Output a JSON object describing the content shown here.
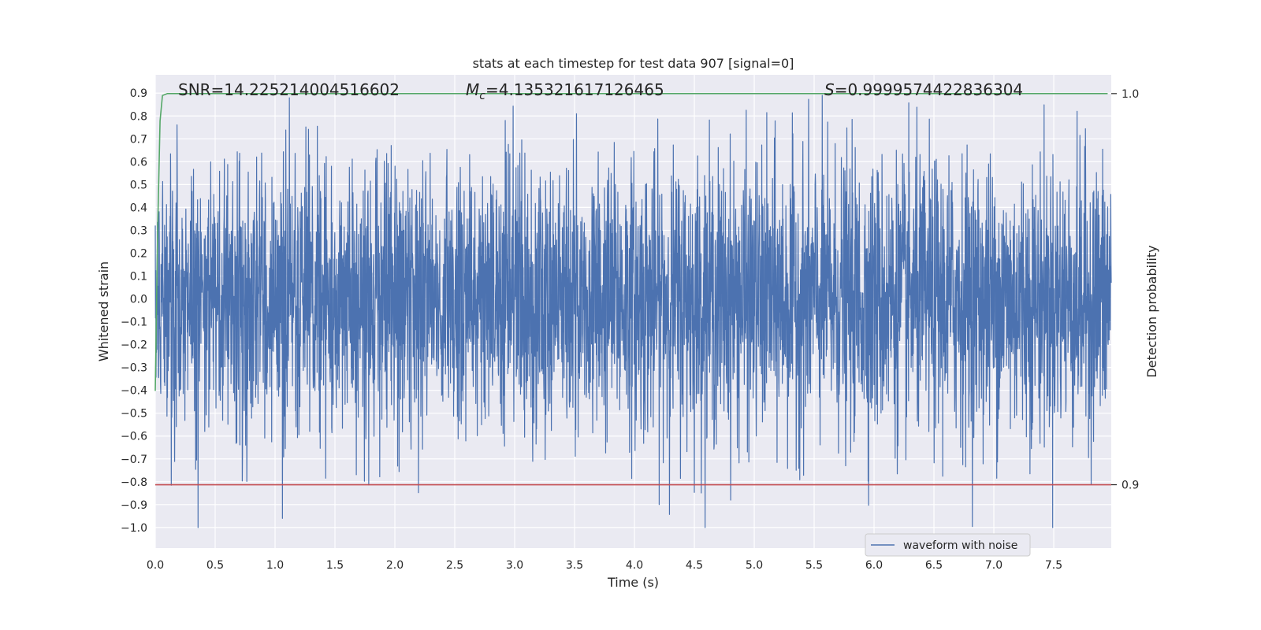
{
  "chart_data": {
    "type": "line",
    "title": "stats at each timestep for test data 907 [signal=0]",
    "xlabel": "Time (s)",
    "ylabel": "Whitened strain",
    "y2label": "Detection probability",
    "xlim": [
      0.0,
      7.98
    ],
    "ylim": [
      -1.09,
      0.98
    ],
    "y2lim": [
      0.8838,
      1.0048
    ],
    "x_ticks": [
      "0.0",
      "0.5",
      "1.0",
      "1.5",
      "2.0",
      "2.5",
      "3.0",
      "3.5",
      "4.0",
      "4.5",
      "5.0",
      "5.5",
      "6.0",
      "6.5",
      "7.0",
      "7.5"
    ],
    "y_ticks": [
      "0.9",
      "0.8",
      "0.7",
      "0.6",
      "0.5",
      "0.4",
      "0.3",
      "0.2",
      "0.1",
      "0.0",
      "−0.1",
      "−0.2",
      "−0.3",
      "−0.4",
      "−0.5",
      "−0.6",
      "−0.7",
      "−0.8",
      "−0.9",
      "−1.0"
    ],
    "y2_ticks": [
      "1.0",
      "0.9"
    ],
    "annotations": {
      "snr": "SNR=14.225214004516602",
      "mc_symbol": "M",
      "mc_sub": "c",
      "mc_value": "=4.135321617126465",
      "s_symbol": "S",
      "s_value": "=0.9999574422836304"
    },
    "legend": {
      "label": "waveform with noise",
      "position": "lower-right"
    },
    "series": [
      {
        "name": "waveform with noise",
        "color": "#4c72b0",
        "axis": "left",
        "noise": {
          "amplitude": 0.3,
          "samples": 4000
        }
      },
      {
        "color": "#55a868",
        "axis": "right",
        "x": [
          0.0,
          0.02,
          0.04,
          0.06,
          0.1,
          7.95
        ],
        "y": [
          0.924,
          0.965,
          0.993,
          0.9995,
          1.0,
          1.0
        ]
      },
      {
        "color": "#c44e52",
        "axis": "right",
        "x": [
          0.0,
          7.98
        ],
        "y": [
          0.9,
          0.9
        ]
      }
    ]
  }
}
